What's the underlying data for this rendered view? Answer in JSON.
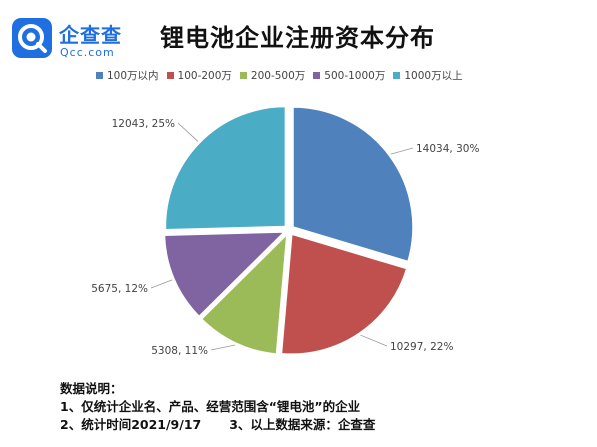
{
  "logo": {
    "cn": "企查查",
    "en": "Qcc.com"
  },
  "title": "锂电池企业注册资本分布",
  "chart_data": {
    "type": "pie",
    "title": "锂电池企业注册资本分布",
    "legend_position": "top",
    "slices": [
      {
        "name": "100万以内",
        "value": 14034,
        "percent": 30,
        "label": "14034, 30%",
        "color": "#4f81bd"
      },
      {
        "name": "100-200万",
        "value": 10297,
        "percent": 22,
        "label": "10297, 22%",
        "color": "#c0504d"
      },
      {
        "name": "200-500万",
        "value": 5308,
        "percent": 11,
        "label": "5308, 11%",
        "color": "#9bbb59"
      },
      {
        "name": "500-1000万",
        "value": 5675,
        "percent": 12,
        "label": "5675, 12%",
        "color": "#8064a2"
      },
      {
        "name": "1000万以上",
        "value": 12043,
        "percent": 25,
        "label": "12043, 25%",
        "color": "#4bacc6"
      }
    ]
  },
  "notes": {
    "heading": "数据说明：",
    "line1": "1、仅统计企业名、产品、经营范围含“锂电池”的企业",
    "line2a": "2、统计时间2021/9/17",
    "line2b": "3、以上数据来源：企查查"
  }
}
